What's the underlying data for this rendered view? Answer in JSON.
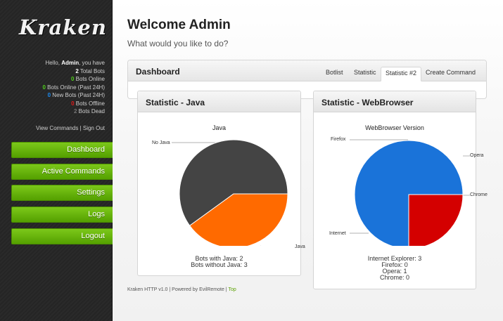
{
  "sidebar": {
    "logo": "Kraken",
    "greeting_prefix": "Hello, ",
    "user": "Admin",
    "greeting_suffix": ", you have",
    "stats": [
      {
        "count": "2",
        "label": " Total Bots",
        "color": "white"
      },
      {
        "count": "0",
        "label": " Bots Online",
        "color": "green"
      },
      {
        "count": "0",
        "label": " Bots Online (Past 24H)",
        "color": "green"
      },
      {
        "count": "0",
        "label": " New Bots (Past 24H)",
        "color": "blue"
      },
      {
        "count": "0",
        "label": " Bots Offline",
        "color": "red"
      },
      {
        "count": "2",
        "label": " Bots Dead",
        "color": "grey"
      }
    ],
    "view_commands": "View Commands",
    "separator": " | ",
    "sign_out": "Sign Out",
    "nav": [
      "Dashboard",
      "Active Commands",
      "Settings",
      "Logs",
      "Logout"
    ]
  },
  "main": {
    "welcome": "Welcome Admin",
    "subtitle": "What would you like to do?",
    "dashboard_title": "Dashboard",
    "tabs": [
      "Botlist",
      "Statistic",
      "Statistic #2",
      "Create Command"
    ],
    "active_tab": "Statistic #2"
  },
  "java_panel": {
    "title": "Statistic - Java",
    "chart_title": "Java",
    "label_no_java": "No Java",
    "label_java": "Java",
    "summary": [
      "Bots with Java: 2",
      "Bots without Java: 3"
    ]
  },
  "browser_panel": {
    "title": "Statistic - WebBrowser",
    "chart_title": "WebBrowser Version",
    "label_firefox": "Firefox",
    "label_opera": "Opera",
    "label_chrome": "Chrome",
    "label_internet": "Internet",
    "summary": [
      "Internet Explorer: 3",
      "Firefox: 0",
      "Opera: 1",
      "Chrome: 0"
    ]
  },
  "footer": {
    "text": "Kraken HTTP v1.0 | Powered by EvilRemote | ",
    "top": "Top"
  },
  "chart_data": [
    {
      "type": "pie",
      "title": "Java",
      "categories": [
        "No Java",
        "Java"
      ],
      "values": [
        3,
        2
      ],
      "colors": [
        "#444444",
        "#ff6a00"
      ]
    },
    {
      "type": "pie",
      "title": "WebBrowser Version",
      "categories": [
        "Internet",
        "Opera",
        "Chrome",
        "Firefox"
      ],
      "values": [
        3,
        1,
        0,
        0
      ],
      "colors": [
        "#1a73d9",
        "#d40000",
        "#2d9e2d",
        "#ff9900"
      ]
    }
  ]
}
